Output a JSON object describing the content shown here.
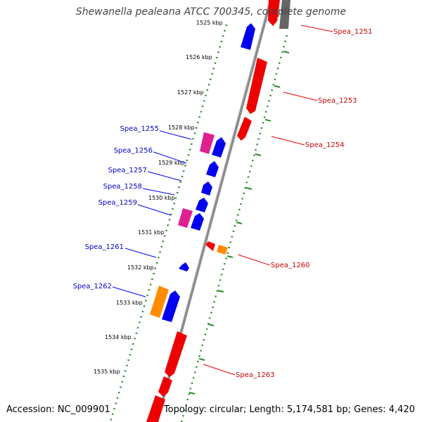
{
  "title": "Shewanella pealeana ATCC 700345, complete genome",
  "accession_text": "Accession: NC_009901",
  "topology_text": "Topology: circular; Length: 5,174,581 bp; Genes: 4,420",
  "colors": {
    "forward_cds": "#0000ee",
    "reverse_cds": "#ee0000",
    "rna": "#ff8c00",
    "other": "#e02090",
    "backbone": "#888888",
    "tick": "#2a8a2a"
  },
  "kbp_labels": [
    "1525 kbp",
    "1526 kbp",
    "1527 kbp",
    "1528 kbp",
    "1529 kbp",
    "1530 kbp",
    "1531 kbp",
    "1532 kbp",
    "1533 kbp",
    "1534 kbp",
    "1535 kbp"
  ],
  "left_labels": [
    "Spea_1255",
    "Spea_1256",
    "Spea_1257",
    "Spea_1258",
    "Spea_1259",
    "Spea_1261",
    "Spea_1262"
  ],
  "right_labels": [
    "Spea_1251",
    "Spea_1253",
    "Spea_1254",
    "Spea_1260",
    "Spea_1263"
  ]
}
